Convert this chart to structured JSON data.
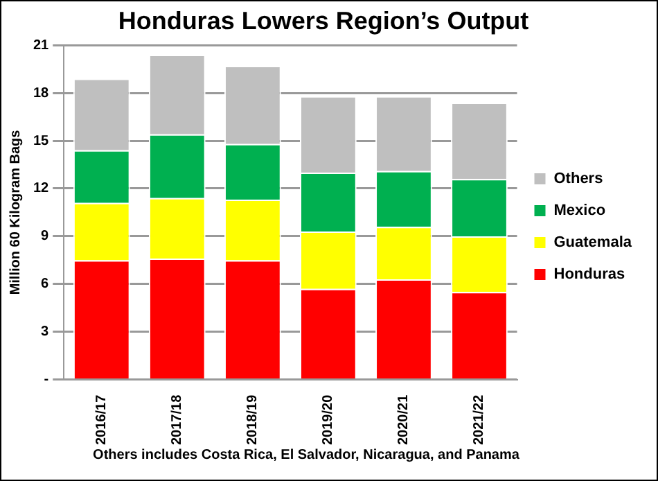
{
  "chart_data": {
    "type": "bar",
    "stacked": true,
    "title": "Honduras Lowers Region’s Output",
    "ylabel": "Million 60 Kilogram Bags",
    "categories": [
      "2016/17",
      "2017/18",
      "2018/19",
      "2019/20",
      "2020/21",
      "2021/22"
    ],
    "series": [
      {
        "name": "Honduras",
        "color": "#ff0000",
        "values": [
          7.5,
          7.6,
          7.5,
          5.7,
          6.3,
          5.5
        ]
      },
      {
        "name": "Guatemala",
        "color": "#ffff00",
        "values": [
          3.6,
          3.8,
          3.8,
          3.6,
          3.3,
          3.5
        ]
      },
      {
        "name": "Mexico",
        "color": "#00b050",
        "values": [
          3.3,
          4.0,
          3.5,
          3.7,
          3.5,
          3.6
        ]
      },
      {
        "name": "Others",
        "color": "#bfbfbf",
        "values": [
          4.5,
          5.0,
          4.9,
          4.8,
          4.7,
          4.8
        ]
      }
    ],
    "ylim": [
      0,
      21
    ],
    "yticks": [
      {
        "value": 0,
        "label": "-"
      },
      3,
      6,
      9,
      12,
      15,
      18,
      21
    ],
    "grid": "y",
    "legend": "right",
    "annotations": [
      "Others includes  Costa Rica, El Salvador, Nicaragua, and Panama"
    ]
  }
}
